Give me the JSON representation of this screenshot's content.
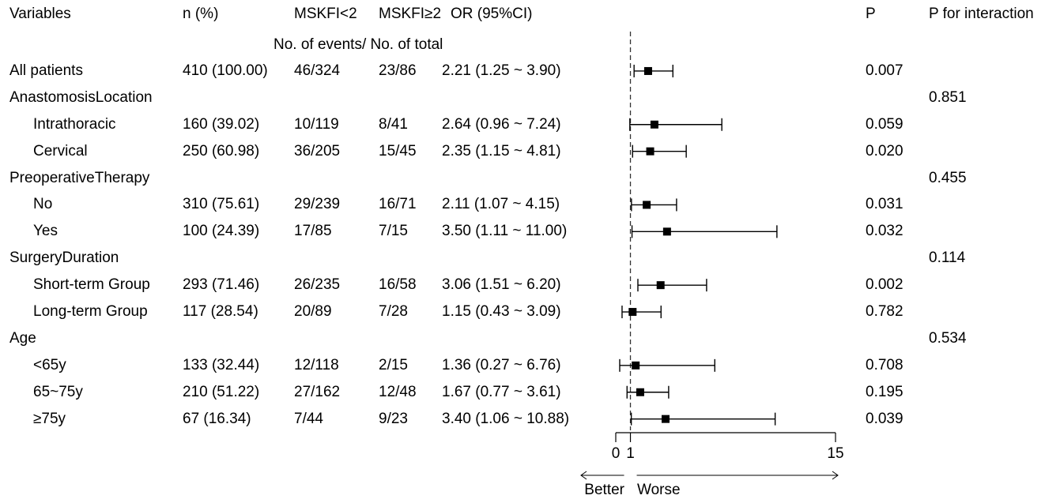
{
  "headers": {
    "variables": "Variables",
    "n": "n (%)",
    "g1": "MSKFI<2",
    "g2": "MSKFI≥2",
    "or": "OR (95%CI)",
    "p": "P",
    "p_int": "P for interaction",
    "subheader": "No. of events/ No. of total"
  },
  "rows": [
    {
      "label": "All patients",
      "indent": false,
      "n": "410 (100.00)",
      "g1": "46/324",
      "g2": "23/86",
      "or_text": "2.21 (1.25 ~ 3.90)",
      "p": "0.007",
      "p_int": "",
      "or": 2.21,
      "lo": 1.25,
      "hi": 3.9
    },
    {
      "label": "AnastomosisLocation",
      "indent": false,
      "n": "",
      "g1": "",
      "g2": "",
      "or_text": "",
      "p": "",
      "p_int": "0.851",
      "or": null,
      "lo": null,
      "hi": null
    },
    {
      "label": "Intrathoracic",
      "indent": true,
      "n": "160 (39.02)",
      "g1": "10/119",
      "g2": "8/41",
      "or_text": "2.64 (0.96 ~ 7.24)",
      "p": "0.059",
      "p_int": "",
      "or": 2.64,
      "lo": 0.96,
      "hi": 7.24
    },
    {
      "label": "Cervical",
      "indent": true,
      "n": "250 (60.98)",
      "g1": "36/205",
      "g2": "15/45",
      "or_text": "2.35 (1.15 ~ 4.81)",
      "p": "0.020",
      "p_int": "",
      "or": 2.35,
      "lo": 1.15,
      "hi": 4.81
    },
    {
      "label": "PreoperativeTherapy",
      "indent": false,
      "n": "",
      "g1": "",
      "g2": "",
      "or_text": "",
      "p": "",
      "p_int": "0.455",
      "or": null,
      "lo": null,
      "hi": null
    },
    {
      "label": "No",
      "indent": true,
      "n": "310 (75.61)",
      "g1": "29/239",
      "g2": "16/71",
      "or_text": "2.11 (1.07 ~ 4.15)",
      "p": "0.031",
      "p_int": "",
      "or": 2.11,
      "lo": 1.07,
      "hi": 4.15
    },
    {
      "label": "Yes",
      "indent": true,
      "n": "100 (24.39)",
      "g1": "17/85",
      "g2": "7/15",
      "or_text": "3.50 (1.11 ~ 11.00)",
      "p": "0.032",
      "p_int": "",
      "or": 3.5,
      "lo": 1.11,
      "hi": 11.0
    },
    {
      "label": "SurgeryDuration",
      "indent": false,
      "n": "",
      "g1": "",
      "g2": "",
      "or_text": "",
      "p": "",
      "p_int": "0.114",
      "or": null,
      "lo": null,
      "hi": null
    },
    {
      "label": "Short-term Group",
      "indent": true,
      "n": "293 (71.46)",
      "g1": "26/235",
      "g2": "16/58",
      "or_text": "3.06 (1.51 ~ 6.20)",
      "p": "0.002",
      "p_int": "",
      "or": 3.06,
      "lo": 1.51,
      "hi": 6.2
    },
    {
      "label": "Long-term Group",
      "indent": true,
      "n": "117 (28.54)",
      "g1": "20/89",
      "g2": "7/28",
      "or_text": "1.15 (0.43 ~ 3.09)",
      "p": "0.782",
      "p_int": "",
      "or": 1.15,
      "lo": 0.43,
      "hi": 3.09
    },
    {
      "label": "Age",
      "indent": false,
      "n": "",
      "g1": "",
      "g2": "",
      "or_text": "",
      "p": "",
      "p_int": "0.534",
      "or": null,
      "lo": null,
      "hi": null
    },
    {
      "label": "<65y",
      "indent": true,
      "n": "133 (32.44)",
      "g1": "12/118",
      "g2": "2/15",
      "or_text": "1.36 (0.27 ~ 6.76)",
      "p": "0.708",
      "p_int": "",
      "or": 1.36,
      "lo": 0.27,
      "hi": 6.76
    },
    {
      "label": "65~75y",
      "indent": true,
      "n": "210 (51.22)",
      "g1": "27/162",
      "g2": "12/48",
      "or_text": "1.67 (0.77 ~ 3.61)",
      "p": "0.195",
      "p_int": "",
      "or": 1.67,
      "lo": 0.77,
      "hi": 3.61
    },
    {
      "label": "≥75y",
      "indent": true,
      "n": "67 (16.34)",
      "g1": "7/44",
      "g2": "9/23",
      "or_text": "3.40 (1.06 ~ 10.88)",
      "p": "0.039",
      "p_int": "",
      "or": 3.4,
      "lo": 1.06,
      "hi": 10.88
    }
  ],
  "axis": {
    "ticks": [
      "0",
      "1",
      "15"
    ],
    "left_label": "Better",
    "right_label": "Worse"
  },
  "chart_data": {
    "type": "forest",
    "xlim": [
      0,
      15
    ],
    "reference_line": 1,
    "tick_values": [
      0,
      1,
      15
    ],
    "tick_labels": [
      "0",
      "1",
      "15"
    ],
    "grid": false,
    "categories": [
      "All patients",
      "Intrathoracic",
      "Cervical",
      "No",
      "Yes",
      "Short-term Group",
      "Long-term Group",
      "<65y",
      "65~75y",
      "≥75y"
    ],
    "values": [
      2.21,
      2.64,
      2.35,
      2.11,
      3.5,
      3.06,
      1.15,
      1.36,
      1.67,
      3.4
    ],
    "lower": [
      1.25,
      0.96,
      1.15,
      1.07,
      1.11,
      1.51,
      0.43,
      0.27,
      0.77,
      1.06
    ],
    "upper": [
      3.9,
      7.24,
      4.81,
      4.15,
      11.0,
      6.2,
      3.09,
      6.76,
      3.61,
      10.88
    ],
    "direction_labels": [
      "Better",
      "Worse"
    ]
  }
}
